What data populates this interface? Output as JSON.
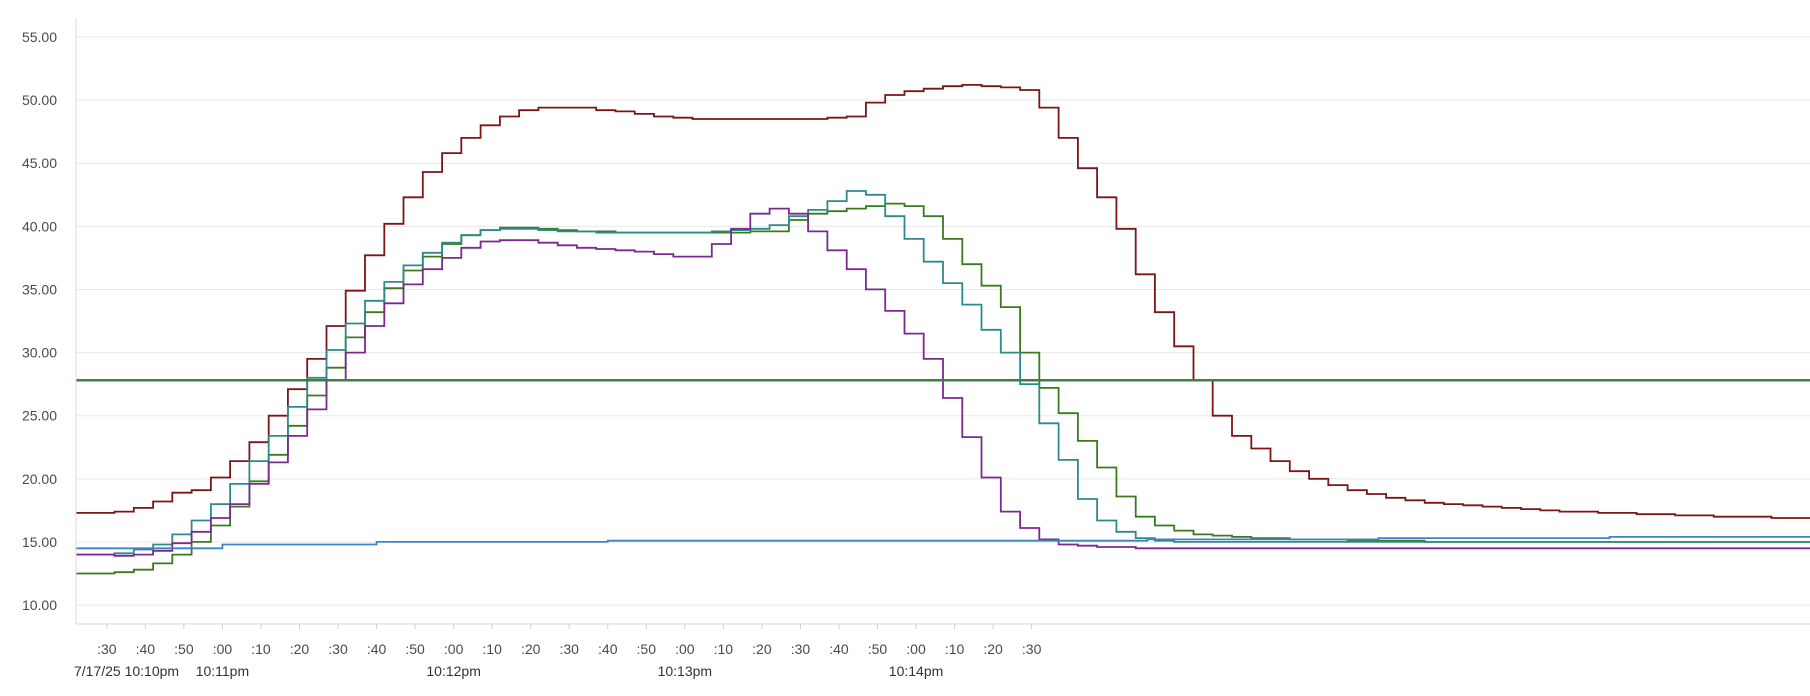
{
  "chart_data": {
    "type": "line",
    "title": "",
    "xlabel": "",
    "ylabel": "",
    "ylim": [
      8.5,
      56.5
    ],
    "xlim": [
      "2025-07-17T22:10:22",
      "2025-07-17T22:14:32"
    ],
    "grid": true,
    "y_ticks": [
      "10.00",
      "15.00",
      "20.00",
      "25.00",
      "30.00",
      "35.00",
      "40.00",
      "45.00",
      "50.00",
      "55.00"
    ],
    "x_minor_ticks": [
      ":30",
      ":40",
      ":50",
      ":00",
      ":10",
      ":20",
      ":30",
      ":40",
      ":50",
      ":00",
      ":10",
      ":20",
      ":30",
      ":40",
      ":50",
      ":00",
      ":10",
      ":20",
      ":30",
      ":40",
      ":50",
      ":00",
      ":10",
      ":20",
      ":30"
    ],
    "x_major_ticks": [
      "7/17/25 10:10pm",
      "10:11pm",
      "10:12pm",
      "10:13pm",
      "10:14pm"
    ],
    "series": [
      {
        "color": "#7b1517",
        "x_seconds": [
          22,
          27,
          32,
          37,
          42,
          47,
          52,
          57,
          62,
          67,
          72,
          77,
          82,
          87,
          92,
          97,
          102,
          107,
          112,
          117,
          122,
          127,
          132,
          137,
          142,
          147,
          152,
          157,
          162,
          167,
          172,
          177,
          182,
          187,
          192,
          197,
          202,
          207,
          212,
          217,
          222,
          227,
          232,
          237,
          242,
          247,
          252,
          257,
          262,
          267,
          272,
          277,
          282,
          287,
          292,
          297,
          302,
          307,
          312,
          317,
          322,
          327,
          332,
          337,
          342,
          347,
          352,
          357,
          362,
          367,
          372,
          377,
          382,
          387,
          392,
          397,
          402,
          407,
          412,
          417,
          422,
          427,
          432,
          437,
          442,
          447,
          452,
          457,
          462,
          467,
          472
        ],
        "values": [
          17.3,
          17.3,
          17.4,
          17.7,
          18.2,
          18.9,
          19.1,
          20.1,
          21.4,
          22.9,
          25.0,
          27.1,
          29.5,
          32.1,
          34.9,
          37.7,
          40.2,
          42.3,
          44.3,
          45.8,
          47.0,
          48.0,
          48.7,
          49.2,
          49.4,
          49.4,
          49.4,
          49.2,
          49.1,
          48.9,
          48.7,
          48.6,
          48.5,
          48.5,
          48.5,
          48.5,
          48.5,
          48.5,
          48.5,
          48.6,
          48.7,
          49.8,
          50.4,
          50.7,
          50.9,
          51.1,
          51.2,
          51.1,
          51.0,
          50.8,
          49.4,
          47.0,
          44.6,
          42.3,
          39.8,
          36.2,
          33.2,
          30.5,
          27.8,
          25.0,
          23.4,
          22.4,
          21.4,
          20.6,
          20.0,
          19.5,
          19.1,
          18.8,
          18.5,
          18.3,
          18.1,
          18.0,
          17.9,
          17.8,
          17.7,
          17.6,
          17.5,
          17.4,
          17.4,
          17.3,
          17.3,
          17.2,
          17.2,
          17.1,
          17.1,
          17.0,
          17.0,
          17.0,
          16.9,
          16.9,
          16.9
        ]
      },
      {
        "color": "#3b7a1f",
        "x_seconds": [
          22,
          27,
          32,
          37,
          42,
          47,
          52,
          57,
          62,
          67,
          72,
          77,
          82,
          87,
          92,
          97,
          102,
          107,
          112,
          117,
          122,
          127,
          132,
          137,
          142,
          147,
          152,
          157,
          162,
          167,
          172,
          177,
          182,
          187,
          192,
          197,
          202,
          207,
          212,
          217,
          222,
          227,
          232,
          237,
          242,
          247,
          252,
          257,
          262,
          267,
          272,
          277,
          282,
          287,
          292,
          297,
          302,
          307,
          312,
          317,
          322,
          327,
          332,
          337,
          342,
          347,
          352,
          357,
          362,
          367,
          372,
          377,
          382,
          387,
          392,
          397,
          402,
          407,
          412,
          417,
          422,
          427,
          432,
          437,
          442,
          447,
          452,
          457,
          462,
          467,
          472
        ],
        "values": [
          12.5,
          12.5,
          12.6,
          12.8,
          13.3,
          14.0,
          15.0,
          16.3,
          17.8,
          19.8,
          21.9,
          24.2,
          26.6,
          28.8,
          31.2,
          33.2,
          35.1,
          36.5,
          37.6,
          38.6,
          39.3,
          39.7,
          39.9,
          39.9,
          39.8,
          39.7,
          39.6,
          39.6,
          39.5,
          39.5,
          39.5,
          39.5,
          39.5,
          39.5,
          39.5,
          39.6,
          39.6,
          40.5,
          41.0,
          41.2,
          41.4,
          41.6,
          41.8,
          41.6,
          40.8,
          39.0,
          37.0,
          35.3,
          33.6,
          30.0,
          27.2,
          25.2,
          23.0,
          20.9,
          18.6,
          17.0,
          16.3,
          15.9,
          15.6,
          15.5,
          15.4,
          15.3,
          15.3,
          15.2,
          15.2,
          15.2,
          15.1,
          15.1,
          15.1,
          15.1,
          15.0,
          15.0,
          15.0,
          15.0,
          15.0,
          15.0,
          15.0,
          15.0,
          15.0,
          15.0,
          15.0,
          15.0,
          15.0,
          15.0,
          15.0,
          15.0,
          15.0,
          15.0,
          15.0,
          15.0,
          15.0
        ]
      },
      {
        "color": "#2e8a8a",
        "x_seconds": [
          22,
          27,
          32,
          37,
          42,
          47,
          52,
          57,
          62,
          67,
          72,
          77,
          82,
          87,
          92,
          97,
          102,
          107,
          112,
          117,
          122,
          127,
          132,
          137,
          142,
          147,
          152,
          157,
          162,
          167,
          172,
          177,
          182,
          187,
          192,
          197,
          202,
          207,
          212,
          217,
          222,
          227,
          232,
          237,
          242,
          247,
          252,
          257,
          262,
          267,
          272,
          277,
          282,
          287,
          292,
          297,
          302,
          307,
          312,
          317,
          322,
          327,
          332,
          337,
          342,
          347,
          352,
          357,
          362,
          367,
          372,
          377,
          382,
          387,
          392,
          397,
          402,
          407,
          412,
          417,
          422,
          427,
          432,
          437,
          442,
          447,
          452,
          457,
          462,
          467,
          472
        ],
        "values": [
          14.0,
          14.0,
          14.1,
          14.4,
          14.8,
          15.6,
          16.7,
          18.0,
          19.6,
          21.4,
          23.4,
          25.7,
          28.0,
          30.2,
          32.3,
          34.1,
          35.6,
          36.9,
          37.9,
          38.7,
          39.3,
          39.7,
          39.8,
          39.8,
          39.7,
          39.6,
          39.6,
          39.5,
          39.5,
          39.5,
          39.5,
          39.5,
          39.5,
          39.6,
          39.7,
          39.8,
          40.1,
          40.8,
          41.3,
          42.0,
          42.8,
          42.5,
          40.8,
          39.0,
          37.2,
          35.5,
          33.8,
          31.8,
          30.0,
          27.5,
          24.4,
          21.5,
          18.4,
          16.7,
          15.8,
          15.3,
          15.1,
          15.0,
          15.0,
          15.0,
          15.0,
          15.0,
          15.0,
          15.0,
          15.0,
          15.0,
          15.0,
          15.0,
          15.0,
          15.0,
          15.0,
          15.0,
          15.0,
          15.0,
          15.0,
          15.0,
          15.0,
          15.0,
          15.0,
          15.0,
          15.0,
          15.0,
          15.0,
          15.0,
          15.0,
          15.0,
          15.0,
          15.0,
          15.0,
          15.0,
          15.0
        ]
      },
      {
        "color": "#7a2a8f",
        "x_seconds": [
          22,
          27,
          32,
          37,
          42,
          47,
          52,
          57,
          62,
          67,
          72,
          77,
          82,
          87,
          92,
          97,
          102,
          107,
          112,
          117,
          122,
          127,
          132,
          137,
          142,
          147,
          152,
          157,
          162,
          167,
          172,
          177,
          182,
          187,
          192,
          197,
          202,
          207,
          212,
          217,
          222,
          227,
          232,
          237,
          242,
          247,
          252,
          257,
          262,
          267,
          272,
          277,
          282,
          287,
          292,
          297,
          302,
          307,
          312,
          317,
          322,
          327,
          332,
          337,
          342,
          347,
          352,
          357,
          362,
          367,
          372,
          377,
          382,
          387,
          392,
          397,
          402,
          407,
          412,
          417,
          422,
          427,
          432,
          437,
          442,
          447,
          452,
          457,
          462,
          467,
          472
        ],
        "values": [
          14.0,
          14.0,
          13.9,
          14.0,
          14.3,
          14.9,
          15.8,
          16.9,
          18.0,
          19.6,
          21.3,
          23.4,
          25.5,
          27.8,
          30.0,
          32.1,
          33.9,
          35.4,
          36.6,
          37.5,
          38.3,
          38.8,
          38.9,
          38.9,
          38.7,
          38.5,
          38.3,
          38.2,
          38.1,
          38.0,
          37.8,
          37.6,
          37.6,
          38.6,
          39.8,
          41.0,
          41.4,
          41.0,
          39.6,
          38.1,
          36.6,
          35.0,
          33.3,
          31.5,
          29.5,
          26.4,
          23.3,
          20.1,
          17.4,
          16.1,
          15.2,
          14.8,
          14.7,
          14.6,
          14.6,
          14.5,
          14.5,
          14.5,
          14.5,
          14.5,
          14.5,
          14.5,
          14.5,
          14.5,
          14.5,
          14.5,
          14.5,
          14.5,
          14.5,
          14.5,
          14.5,
          14.5,
          14.5,
          14.5,
          14.5,
          14.5,
          14.5,
          14.5,
          14.5,
          14.5,
          14.5,
          14.5,
          14.5,
          14.5,
          14.5,
          14.5,
          14.5,
          14.5,
          14.5,
          14.5,
          14.5
        ]
      },
      {
        "color": "#3f82c8",
        "x_seconds": [
          22,
          60,
          100,
          160,
          220,
          260,
          300,
          360,
          420,
          472
        ],
        "values": [
          14.5,
          14.8,
          15.0,
          15.1,
          15.1,
          15.1,
          15.2,
          15.3,
          15.4,
          15.4
        ]
      },
      {
        "color": "#3f7f47",
        "x_seconds": [
          22,
          472
        ],
        "values": [
          27.8,
          27.8
        ]
      }
    ]
  }
}
